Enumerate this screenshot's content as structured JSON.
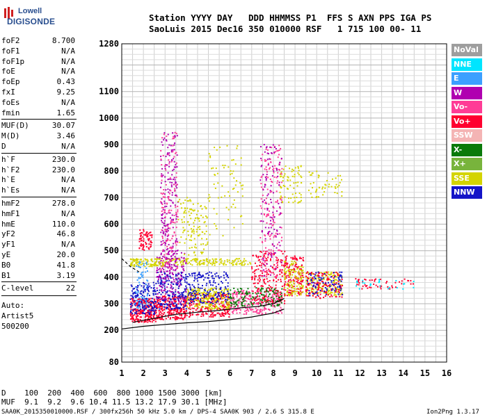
{
  "logo": {
    "line1": "Lowell",
    "line2": "DIGISONDE"
  },
  "header": {
    "row1": "Station YYYY DAY   DDD HHMMSS P1  FFS S AXN PPS IGA PS",
    "row2": "SaoLuis 2015 Dec16 350 010000 RSF   1 715 100 00- 11"
  },
  "params": [
    {
      "name": "foF2",
      "value": "8.700"
    },
    {
      "name": "foF1",
      "value": "N/A"
    },
    {
      "name": "foF1p",
      "value": "N/A"
    },
    {
      "name": "foE",
      "value": "N/A"
    },
    {
      "name": "foEp",
      "value": "0.43"
    },
    {
      "name": "fxI",
      "value": "9.25"
    },
    {
      "name": "foEs",
      "value": "N/A"
    },
    {
      "name": "fmin",
      "value": "1.65"
    },
    {
      "name": "MUF(D)",
      "value": "30.07"
    },
    {
      "name": "M(D)",
      "value": "3.46"
    },
    {
      "name": "D",
      "value": "N/A"
    },
    {
      "name": "h`F",
      "value": "230.0"
    },
    {
      "name": "h`F2",
      "value": "230.0"
    },
    {
      "name": "h`E",
      "value": "N/A"
    },
    {
      "name": "h`Es",
      "value": "N/A"
    },
    {
      "name": "hmF2",
      "value": "278.0"
    },
    {
      "name": "hmF1",
      "value": "N/A"
    },
    {
      "name": "hmE",
      "value": "110.0"
    },
    {
      "name": "yF2",
      "value": "46.8"
    },
    {
      "name": "yF1",
      "value": "N/A"
    },
    {
      "name": "yE",
      "value": "20.0"
    },
    {
      "name": "B0",
      "value": "41.8"
    },
    {
      "name": "B1",
      "value": "3.19"
    },
    {
      "name": "C-level",
      "value": "22"
    }
  ],
  "auto": {
    "line1": "Auto:",
    "line2": "Artist5",
    "line3": "500200"
  },
  "legend": [
    {
      "label": "NoVal",
      "bg": "#9e9e9e",
      "fg": "#ffffff"
    },
    {
      "label": "NNE",
      "bg": "#00e5ff",
      "fg": "#ffffff"
    },
    {
      "label": "E",
      "bg": "#3ca0ff",
      "fg": "#ffffff"
    },
    {
      "label": "W",
      "bg": "#b000b0",
      "fg": "#ffffff"
    },
    {
      "label": "Vo-",
      "bg": "#ff3c96",
      "fg": "#ffffff"
    },
    {
      "label": "Vo+",
      "bg": "#ff0030",
      "fg": "#ffffff"
    },
    {
      "label": "SSW",
      "bg": "#f4b4b4",
      "fg": "#ffffff"
    },
    {
      "label": "X-",
      "bg": "#0a7a0a",
      "fg": "#ffffff"
    },
    {
      "label": "X+",
      "bg": "#78b43c",
      "fg": "#ffffff"
    },
    {
      "label": "SSE",
      "bg": "#d4d400",
      "fg": "#ffffff"
    },
    {
      "label": "NNW",
      "bg": "#1414c8",
      "fg": "#ffffff"
    }
  ],
  "bottom": {
    "d_row": "D    100  200  400  600  800 1000 1500 3000 [km]",
    "muf_row": "MUF  9.1  9.2  9.6 10.4 11.5 13.2 17.9 30.1 [MHz]"
  },
  "footer": {
    "left": "SAA0K_2015350010000.RSF / 300fx256h 50 kHz 5.0 km / DPS-4 SAA0K 903 / 2.6 S 315.8 E",
    "right": "Ion2Png 1.3.17"
  },
  "chart_data": {
    "type": "scatter",
    "title": "",
    "xlabel": "",
    "ylabel": "",
    "xlim": [
      1,
      16
    ],
    "ylim": [
      80,
      1280
    ],
    "x_ticks": [
      "1",
      "2",
      "3",
      "4",
      "5",
      "6",
      "7",
      "8",
      "9",
      "10",
      "11",
      "12",
      "13",
      "14",
      "15",
      "16"
    ],
    "y_ticks": [
      {
        "v": 80,
        "label": "80"
      },
      {
        "v": 200,
        "label": "200"
      },
      {
        "v": 300,
        "label": "300"
      },
      {
        "v": 400,
        "label": "400"
      },
      {
        "v": 500,
        "label": "500"
      },
      {
        "v": 600,
        "label": "600"
      },
      {
        "v": 700,
        "label": "700"
      },
      {
        "v": 800,
        "label": "800"
      },
      {
        "v": 900,
        "label": "900"
      },
      {
        "v": 1000,
        "label": "1000"
      },
      {
        "v": 1100,
        "label": "1100"
      },
      {
        "v": 1280,
        "label": "1280"
      }
    ],
    "grid": true,
    "traces": [
      {
        "name": "ordinary trace",
        "color": "#000000",
        "points": [
          [
            1.5,
            230
          ],
          [
            2.5,
            245
          ],
          [
            3.5,
            260
          ],
          [
            4.5,
            268
          ],
          [
            5.5,
            275
          ],
          [
            6.5,
            285
          ],
          [
            7.3,
            290
          ],
          [
            8.0,
            300
          ],
          [
            8.5,
            320
          ]
        ]
      },
      {
        "name": "profile",
        "color": "#000000",
        "points": [
          [
            1.0,
            205
          ],
          [
            2.0,
            215
          ],
          [
            3.0,
            222
          ],
          [
            4.0,
            228
          ],
          [
            5.0,
            233
          ],
          [
            6.0,
            240
          ],
          [
            7.0,
            250
          ],
          [
            8.0,
            265
          ],
          [
            8.5,
            280
          ]
        ]
      },
      {
        "name": "Es dashed",
        "color": "#000000",
        "dashed": true,
        "points": [
          [
            1.0,
            470
          ],
          [
            1.4,
            440
          ],
          [
            1.8,
            420
          ]
        ]
      }
    ],
    "echo_clusters": [
      {
        "x": [
          1.4,
          2.6
        ],
        "y": [
          230,
          320
        ],
        "color": "#ff0030",
        "n": 260
      },
      {
        "x": [
          1.4,
          2.6
        ],
        "y": [
          260,
          380
        ],
        "color": "#1414c8",
        "n": 160
      },
      {
        "x": [
          2.6,
          4.0
        ],
        "y": [
          240,
          330
        ],
        "color": "#ff0030",
        "n": 260
      },
      {
        "x": [
          2.6,
          4.0
        ],
        "y": [
          280,
          420
        ],
        "color": "#1414c8",
        "n": 200
      },
      {
        "x": [
          2.6,
          4.0
        ],
        "y": [
          300,
          500
        ],
        "color": "#b000b0",
        "n": 160
      },
      {
        "x": [
          4.0,
          6.0
        ],
        "y": [
          250,
          340
        ],
        "color": "#ff0030",
        "n": 260
      },
      {
        "x": [
          4.0,
          6.0
        ],
        "y": [
          280,
          360
        ],
        "color": "#d4d400",
        "n": 220
      },
      {
        "x": [
          4.0,
          6.0
        ],
        "y": [
          300,
          420
        ],
        "color": "#1414c8",
        "n": 180
      },
      {
        "x": [
          6.0,
          8.4
        ],
        "y": [
          260,
          350
        ],
        "color": "#ff3c96",
        "n": 240
      },
      {
        "x": [
          6.0,
          8.4
        ],
        "y": [
          290,
          360
        ],
        "color": "#0a7a0a",
        "n": 150
      },
      {
        "x": [
          7.0,
          8.6
        ],
        "y": [
          300,
          500
        ],
        "color": "#ff0030",
        "n": 200
      },
      {
        "x": [
          8.5,
          9.4
        ],
        "y": [
          330,
          480
        ],
        "color": "#ff0030",
        "n": 150
      },
      {
        "x": [
          8.5,
          9.4
        ],
        "y": [
          330,
          460
        ],
        "color": "#d4d400",
        "n": 110
      },
      {
        "x": [
          9.5,
          11.2
        ],
        "y": [
          330,
          420
        ],
        "color": "#d4d400",
        "n": 180
      },
      {
        "x": [
          9.5,
          11.2
        ],
        "y": [
          320,
          420
        ],
        "color": "#ff0030",
        "n": 140
      },
      {
        "x": [
          9.5,
          11.2
        ],
        "y": [
          330,
          420
        ],
        "color": "#1414c8",
        "n": 80
      },
      {
        "x": [
          1.4,
          3.0
        ],
        "y": [
          440,
          470
        ],
        "color": "#d4d400",
        "n": 110
      },
      {
        "x": [
          3.0,
          7.0
        ],
        "y": [
          445,
          470
        ],
        "color": "#d4d400",
        "n": 140
      },
      {
        "x": [
          1.8,
          2.4
        ],
        "y": [
          500,
          580
        ],
        "color": "#ff0030",
        "n": 70
      },
      {
        "x": [
          2.8,
          3.6
        ],
        "y": [
          420,
          950
        ],
        "color": "#b000b0",
        "n": 220
      },
      {
        "x": [
          2.8,
          3.6
        ],
        "y": [
          420,
          950
        ],
        "color": "#ff3c96",
        "n": 120
      },
      {
        "x": [
          3.6,
          5.0
        ],
        "y": [
          480,
          700
        ],
        "color": "#d4d400",
        "n": 120
      },
      {
        "x": [
          5.0,
          6.6
        ],
        "y": [
          550,
          900
        ],
        "color": "#d4d400",
        "n": 70
      },
      {
        "x": [
          7.4,
          8.4
        ],
        "y": [
          400,
          900
        ],
        "color": "#ff3c96",
        "n": 170
      },
      {
        "x": [
          7.4,
          8.4
        ],
        "y": [
          400,
          900
        ],
        "color": "#b000b0",
        "n": 110
      },
      {
        "x": [
          8.3,
          9.3
        ],
        "y": [
          680,
          820
        ],
        "color": "#d4d400",
        "n": 70
      },
      {
        "x": [
          9.6,
          11.2
        ],
        "y": [
          700,
          800
        ],
        "color": "#d4d400",
        "n": 50
      },
      {
        "x": [
          11.8,
          14.5
        ],
        "y": [
          355,
          395
        ],
        "color": "#ff0030",
        "n": 50
      },
      {
        "x": [
          11.8,
          14.5
        ],
        "y": [
          355,
          395
        ],
        "color": "#00e5ff",
        "n": 25
      },
      {
        "x": [
          1.6,
          2.2
        ],
        "y": [
          280,
          460
        ],
        "color": "#3ca0ff",
        "n": 60
      }
    ]
  }
}
